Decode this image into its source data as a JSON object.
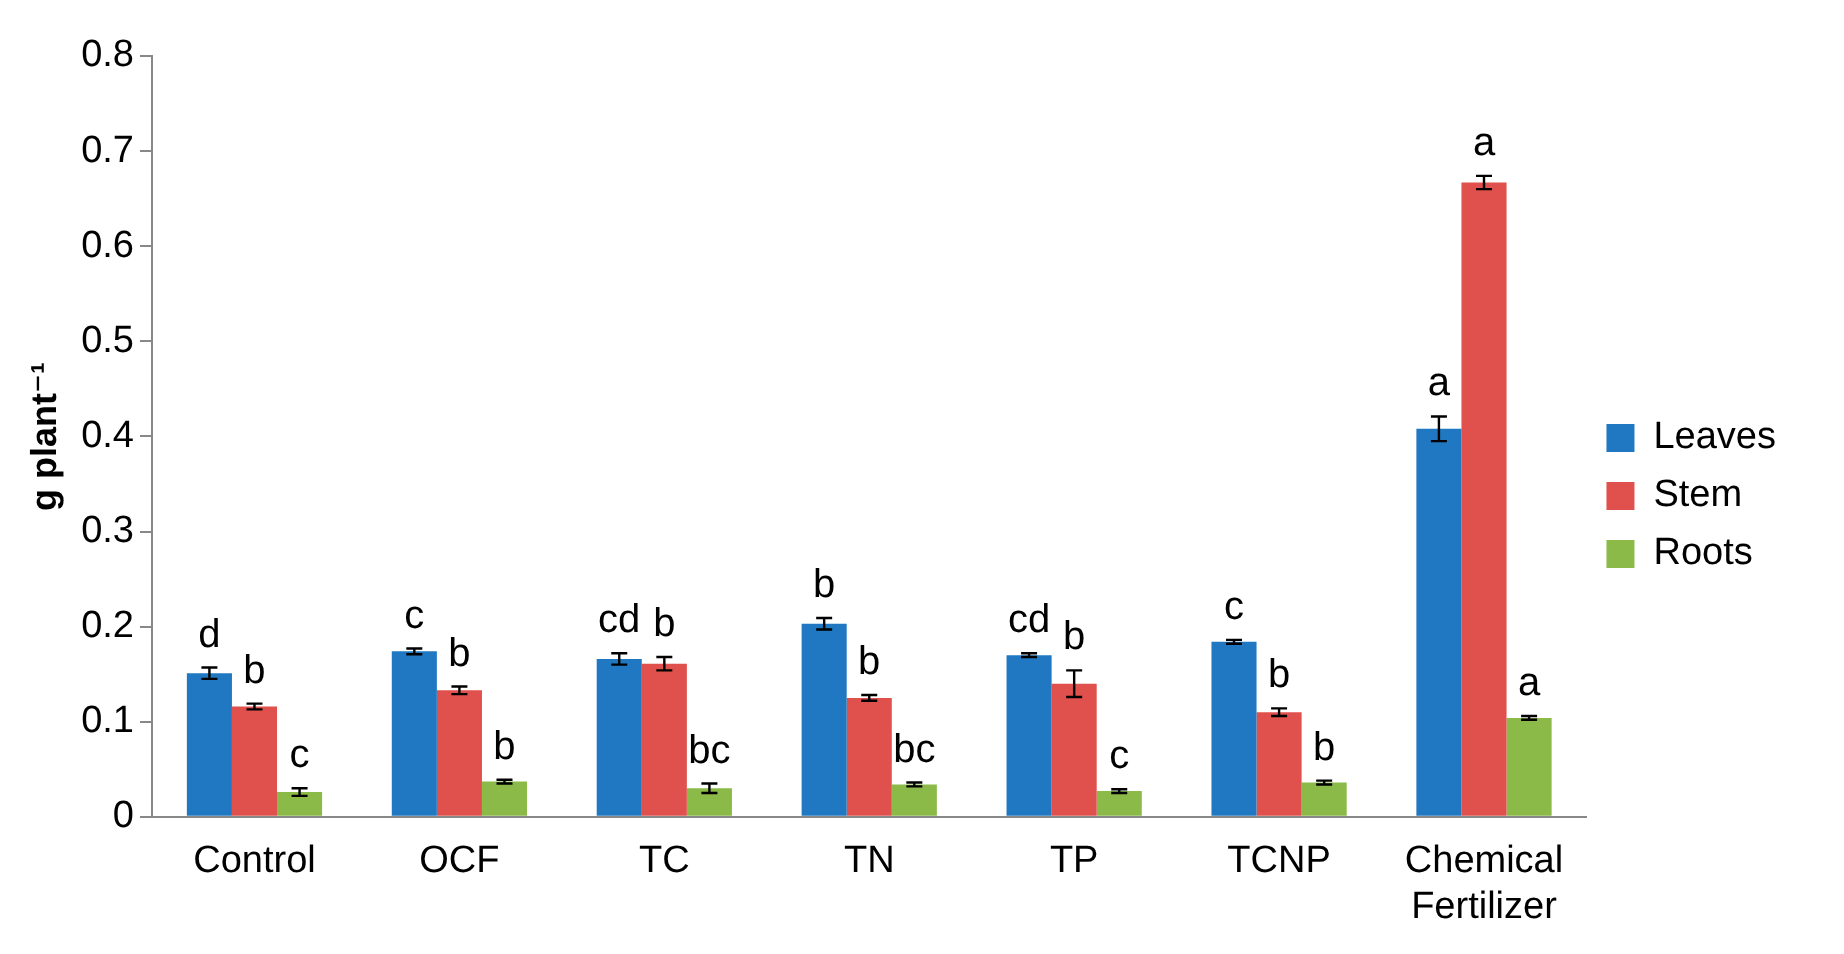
{
  "chart_data": {
    "type": "bar",
    "ylabel": "g plant⁻¹",
    "categories": [
      "Control",
      "OCF",
      "TC",
      "TN",
      "TP",
      "TCNP",
      "Chemical Fertilizer"
    ],
    "series": [
      {
        "name": "Leaves",
        "color": "#1f78c1",
        "values": [
          0.151,
          0.174,
          0.166,
          0.203,
          0.17,
          0.184,
          0.408
        ],
        "errors": [
          0.006,
          0.003,
          0.006,
          0.006,
          0.002,
          0.002,
          0.013
        ],
        "value_labels": [
          "d",
          "c",
          "cd",
          "b",
          "cd",
          "c",
          "a"
        ]
      },
      {
        "name": "Stem",
        "color": "#e0504c",
        "values": [
          0.116,
          0.133,
          0.161,
          0.125,
          0.14,
          0.11,
          0.667
        ],
        "errors": [
          0.003,
          0.004,
          0.007,
          0.003,
          0.014,
          0.004,
          0.007
        ],
        "value_labels": [
          "b",
          "b",
          "b",
          "b",
          "b",
          "b",
          "a"
        ]
      },
      {
        "name": "Roots",
        "color": "#8bba48",
        "values": [
          0.026,
          0.037,
          0.03,
          0.034,
          0.027,
          0.036,
          0.104
        ],
        "errors": [
          0.004,
          0.002,
          0.005,
          0.002,
          0.002,
          0.002,
          0.002
        ],
        "value_labels": [
          "c",
          "b",
          "bc",
          "bc",
          "c",
          "b",
          "a"
        ]
      }
    ],
    "ylim": [
      0,
      0.8
    ],
    "yticks": [
      0,
      0.1,
      0.2,
      0.3,
      0.4,
      0.5,
      0.6,
      0.7,
      0.8
    ],
    "grid": false,
    "legend": "right"
  }
}
